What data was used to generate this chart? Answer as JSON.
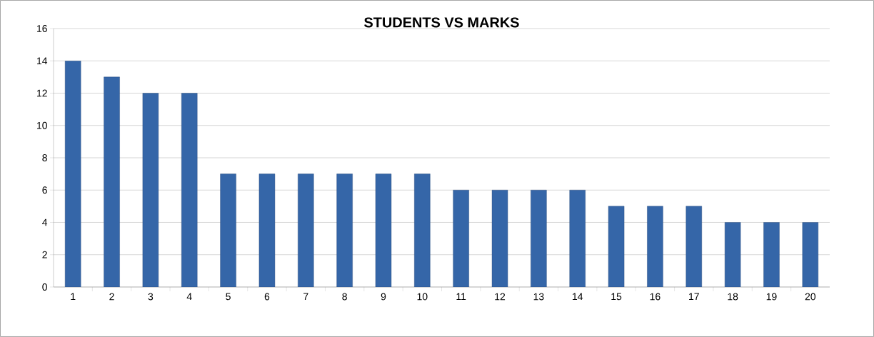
{
  "chart_data": {
    "type": "bar",
    "title": "STUDENTS VS MARKS",
    "categories": [
      "1",
      "2",
      "3",
      "4",
      "5",
      "6",
      "7",
      "8",
      "9",
      "10",
      "11",
      "12",
      "13",
      "14",
      "15",
      "16",
      "17",
      "18",
      "19",
      "20"
    ],
    "values": [
      14,
      13,
      12,
      12,
      7,
      7,
      7,
      7,
      7,
      7,
      6,
      6,
      6,
      6,
      5,
      5,
      5,
      4,
      4,
      4
    ],
    "color": "#3566a8",
    "ylim": [
      0,
      16
    ],
    "yticks": [
      0,
      2,
      4,
      6,
      8,
      10,
      12,
      14,
      16
    ],
    "grid": "y"
  }
}
